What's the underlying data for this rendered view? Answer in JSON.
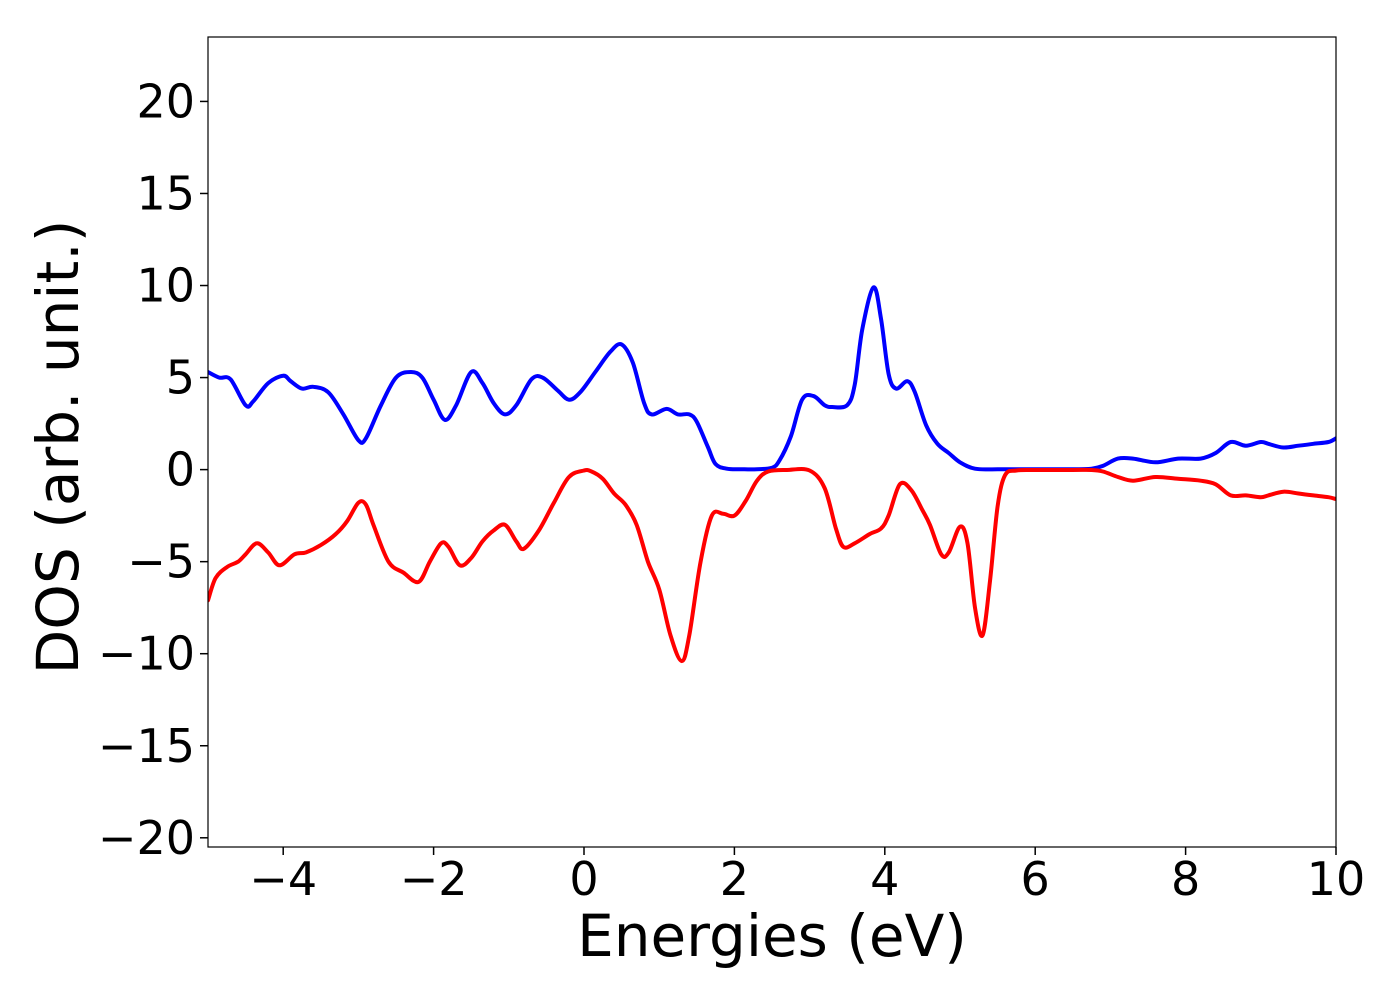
{
  "chart_data": {
    "type": "line",
    "xlabel": "Energies (eV)",
    "ylabel": "DOS (arb. unit.)",
    "xlim": [
      -5,
      10
    ],
    "ylim": [
      -20.5,
      23.5
    ],
    "xticks": [
      -4,
      -2,
      0,
      2,
      4,
      6,
      8,
      10
    ],
    "xtick_labels": [
      "−4",
      "−2",
      "0",
      "2",
      "4",
      "6",
      "8",
      "10"
    ],
    "yticks": [
      -20,
      -15,
      -10,
      -5,
      0,
      5,
      10,
      15,
      20
    ],
    "ytick_labels": [
      "−20",
      "−15",
      "−10",
      "−5",
      "0",
      "5",
      "10",
      "15",
      "20"
    ],
    "grid": false,
    "series": [
      {
        "color": "#0000ff",
        "x": [
          -5.0,
          -4.85,
          -4.7,
          -4.5,
          -4.4,
          -4.2,
          -4.0,
          -3.9,
          -3.75,
          -3.6,
          -3.4,
          -3.2,
          -3.0,
          -2.9,
          -2.7,
          -2.5,
          -2.3,
          -2.15,
          -2.0,
          -1.85,
          -1.7,
          -1.5,
          -1.35,
          -1.2,
          -1.05,
          -0.9,
          -0.7,
          -0.55,
          -0.35,
          -0.2,
          -0.05,
          0.15,
          0.35,
          0.5,
          0.65,
          0.8,
          0.9,
          1.1,
          1.25,
          1.4,
          1.5,
          1.65,
          1.75,
          1.9,
          2.1,
          2.3,
          2.5,
          2.6,
          2.75,
          2.9,
          3.05,
          3.2,
          3.3,
          3.5,
          3.6,
          3.7,
          3.85,
          3.95,
          4.05,
          4.15,
          4.3,
          4.4,
          4.55,
          4.7,
          4.85,
          5.0,
          5.2,
          5.5,
          6.0,
          6.5,
          6.75,
          6.9,
          7.1,
          7.3,
          7.6,
          7.9,
          8.2,
          8.4,
          8.6,
          8.8,
          9.0,
          9.1,
          9.3,
          9.5,
          9.7,
          9.9,
          10.0
        ],
        "y": [
          5.3,
          5.0,
          4.9,
          3.5,
          3.7,
          4.7,
          5.1,
          4.8,
          4.4,
          4.5,
          4.2,
          3.0,
          1.6,
          1.7,
          3.5,
          5.0,
          5.3,
          5.0,
          3.8,
          2.7,
          3.5,
          5.3,
          4.7,
          3.6,
          3.0,
          3.5,
          4.9,
          5.0,
          4.3,
          3.8,
          4.2,
          5.3,
          6.4,
          6.8,
          5.8,
          3.6,
          3.0,
          3.3,
          3.0,
          3.0,
          2.6,
          1.2,
          0.3,
          0.05,
          0.02,
          0.02,
          0.1,
          0.5,
          1.8,
          3.8,
          4.0,
          3.5,
          3.4,
          3.5,
          4.6,
          7.6,
          9.9,
          8.2,
          5.2,
          4.4,
          4.8,
          4.2,
          2.4,
          1.4,
          0.9,
          0.4,
          0.05,
          0.02,
          0.02,
          0.02,
          0.05,
          0.2,
          0.6,
          0.6,
          0.4,
          0.6,
          0.6,
          0.9,
          1.5,
          1.3,
          1.5,
          1.4,
          1.2,
          1.3,
          1.4,
          1.5,
          1.7
        ]
      },
      {
        "color": "#ff0000",
        "x": [
          -5.0,
          -4.9,
          -4.75,
          -4.6,
          -4.5,
          -4.35,
          -4.2,
          -4.05,
          -3.85,
          -3.7,
          -3.5,
          -3.3,
          -3.15,
          -3.0,
          -2.9,
          -2.8,
          -2.6,
          -2.4,
          -2.2,
          -2.05,
          -1.9,
          -1.8,
          -1.65,
          -1.5,
          -1.35,
          -1.2,
          -1.05,
          -0.9,
          -0.8,
          -0.6,
          -0.4,
          -0.2,
          0.0,
          0.1,
          0.25,
          0.4,
          0.55,
          0.7,
          0.85,
          1.0,
          1.15,
          1.3,
          1.4,
          1.55,
          1.7,
          1.85,
          2.0,
          2.15,
          2.3,
          2.45,
          2.7,
          3.0,
          3.2,
          3.35,
          3.45,
          3.6,
          3.8,
          3.95,
          4.05,
          4.2,
          4.35,
          4.5,
          4.6,
          4.75,
          4.85,
          5.0,
          5.1,
          5.2,
          5.3,
          5.4,
          5.5,
          5.6,
          5.75,
          6.0,
          6.5,
          6.75,
          6.9,
          7.1,
          7.3,
          7.6,
          7.9,
          8.2,
          8.4,
          8.6,
          8.8,
          9.0,
          9.1,
          9.3,
          9.5,
          9.7,
          9.9,
          10.0
        ],
        "y": [
          -7.1,
          -5.9,
          -5.3,
          -5.0,
          -4.6,
          -4.0,
          -4.5,
          -5.2,
          -4.6,
          -4.5,
          -4.1,
          -3.5,
          -2.8,
          -1.8,
          -1.9,
          -3.0,
          -5.0,
          -5.6,
          -6.1,
          -5.0,
          -4.0,
          -4.2,
          -5.2,
          -4.8,
          -3.9,
          -3.3,
          -3.0,
          -3.9,
          -4.3,
          -3.3,
          -1.8,
          -0.4,
          -0.05,
          -0.1,
          -0.5,
          -1.3,
          -1.9,
          -3.0,
          -5.0,
          -6.5,
          -9.0,
          -10.4,
          -9.0,
          -5.0,
          -2.5,
          -2.4,
          -2.5,
          -1.7,
          -0.6,
          -0.1,
          -0.02,
          -0.05,
          -1.0,
          -3.2,
          -4.2,
          -4.0,
          -3.5,
          -3.2,
          -2.5,
          -0.8,
          -1.1,
          -2.2,
          -3.0,
          -4.6,
          -4.5,
          -3.1,
          -4.0,
          -7.5,
          -9.0,
          -6.0,
          -2.0,
          -0.3,
          -0.05,
          -0.02,
          -0.02,
          -0.02,
          -0.1,
          -0.4,
          -0.6,
          -0.4,
          -0.5,
          -0.6,
          -0.8,
          -1.4,
          -1.4,
          -1.5,
          -1.4,
          -1.2,
          -1.3,
          -1.4,
          -1.5,
          -1.6
        ]
      }
    ]
  }
}
